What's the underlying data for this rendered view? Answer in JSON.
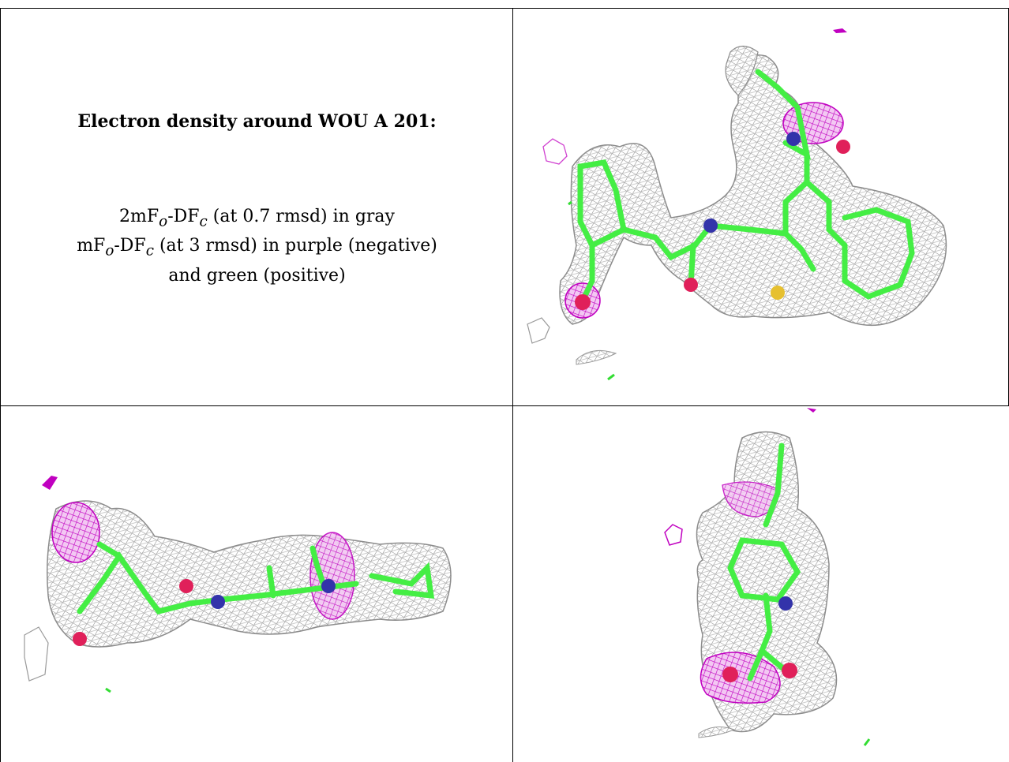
{
  "caption": {
    "title": "Electron density around WOU A 201:",
    "line1": {
      "prefix": "2mF",
      "sub_o": "o",
      "mid": "-DF",
      "sub_c": "c",
      "suffix": " (at 0.7 rmsd) in gray"
    },
    "line2": {
      "prefix": "mF",
      "sub_o": "o",
      "mid": "-DF",
      "sub_c": "c",
      "suffix": " (at 3 rmsd) in purple (negative)"
    },
    "line3": "and green (positive)"
  },
  "colors": {
    "mesh_gray": "#9a9a9a",
    "mesh_purple": "#cc00cc",
    "mesh_green": "#33dd33",
    "carbon": "#44ee44",
    "nitrogen": "#3333aa",
    "oxygen": "#e0205a",
    "sulfur": "#e6c030"
  },
  "panels": [
    {
      "name": "top-right-view",
      "icon": "density-map-view-1"
    },
    {
      "name": "bottom-left-view",
      "icon": "density-map-view-2"
    },
    {
      "name": "bottom-right-view",
      "icon": "density-map-view-3"
    }
  ]
}
